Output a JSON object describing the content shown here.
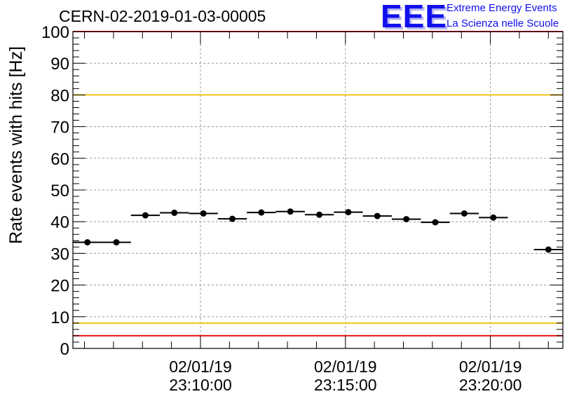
{
  "header": {
    "run_title": "CERN-02-2019-01-03-00005",
    "logo_text": "EEE",
    "logo_line1": "Extreme Energy Events",
    "logo_line2": "La Scienza nelle Scuole"
  },
  "colors": {
    "logo": "#1010ee",
    "threshold_red": "#ee1111",
    "threshold_yellow": "#f0c419",
    "points": "#000000",
    "grid": "#9a9a9a"
  },
  "chart_data": {
    "type": "scatter",
    "title": "",
    "xlabel": "",
    "ylabel": "Rate events with hits [Hz]",
    "ylim": [
      0,
      100
    ],
    "yticks": [
      "0",
      "10",
      "20",
      "30",
      "40",
      "50",
      "60",
      "70",
      "80",
      "90",
      "100"
    ],
    "xlim": [
      "23:05:36",
      "23:22:30"
    ],
    "xticks": [
      {
        "time": "23:10:00",
        "date": "02/01/19",
        "clock": "23:10:00"
      },
      {
        "time": "23:15:00",
        "date": "02/01/19",
        "clock": "23:15:00"
      },
      {
        "time": "23:20:00",
        "date": "02/01/19",
        "clock": "23:20:00"
      }
    ],
    "grid": true,
    "threshold_lines": [
      {
        "value": 100,
        "color": "#ee1111"
      },
      {
        "value": 80,
        "color": "#f0c419"
      },
      {
        "value": 8,
        "color": "#f0c419"
      },
      {
        "value": 4,
        "color": "#ee1111"
      }
    ],
    "points": [
      {
        "x_start": "23:05:36",
        "x_end": "23:06:36",
        "y": 33.5
      },
      {
        "x_start": "23:06:36",
        "x_end": "23:07:36",
        "y": 33.5
      },
      {
        "x_start": "23:07:36",
        "x_end": "23:08:36",
        "y": 42.0
      },
      {
        "x_start": "23:08:36",
        "x_end": "23:09:36",
        "y": 42.8
      },
      {
        "x_start": "23:09:36",
        "x_end": "23:10:36",
        "y": 42.6
      },
      {
        "x_start": "23:10:36",
        "x_end": "23:11:36",
        "y": 40.9
      },
      {
        "x_start": "23:11:36",
        "x_end": "23:12:36",
        "y": 42.9
      },
      {
        "x_start": "23:12:36",
        "x_end": "23:13:36",
        "y": 43.2
      },
      {
        "x_start": "23:13:36",
        "x_end": "23:14:36",
        "y": 42.2
      },
      {
        "x_start": "23:14:36",
        "x_end": "23:15:36",
        "y": 43.0
      },
      {
        "x_start": "23:15:36",
        "x_end": "23:16:36",
        "y": 41.8
      },
      {
        "x_start": "23:16:36",
        "x_end": "23:17:36",
        "y": 40.8
      },
      {
        "x_start": "23:17:36",
        "x_end": "23:18:36",
        "y": 39.8
      },
      {
        "x_start": "23:18:36",
        "x_end": "23:19:36",
        "y": 42.6
      },
      {
        "x_start": "23:19:36",
        "x_end": "23:20:36",
        "y": 41.3
      },
      {
        "x_start": "23:21:30",
        "x_end": "23:22:30",
        "y": 31.2
      }
    ]
  }
}
